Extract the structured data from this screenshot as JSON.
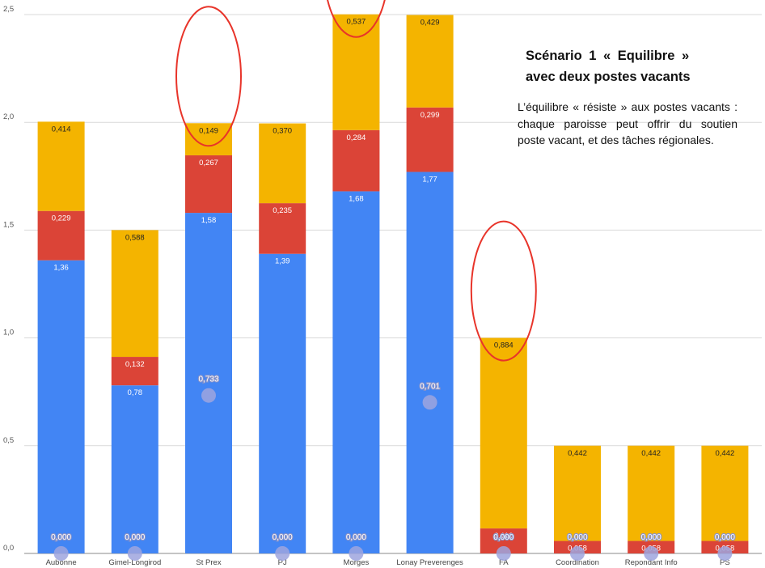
{
  "chart_data": {
    "type": "bar",
    "stacked": true,
    "categories": [
      "Aubonne",
      "Gimel-Longirod",
      "St Prex",
      "PJ",
      "Morges",
      "Lonay Preverenges",
      "FA",
      "Coordination",
      "Repondant Info",
      "PS"
    ],
    "series": [
      {
        "color": "#4285f4",
        "values": [
          1.36,
          0.78,
          1.58,
          1.39,
          1.68,
          1.77,
          0,
          0,
          0,
          0
        ],
        "labels": [
          "1,36",
          "0,78",
          "1,58",
          "1,39",
          "1,68",
          "1,77",
          "",
          "",
          "",
          ""
        ]
      },
      {
        "color": "#db4437",
        "values": [
          0.229,
          0.132,
          0.267,
          0.235,
          0.284,
          0.299,
          0.116,
          0.058,
          0.058,
          0.058
        ],
        "labels": [
          "0,229",
          "0,132",
          "0,267",
          "0,235",
          "0,284",
          "0,299",
          "0,116",
          "0,058",
          "0,058",
          "0,058"
        ]
      },
      {
        "color": "#f4b400",
        "values": [
          0.414,
          0.588,
          0.149,
          0.37,
          0.537,
          0.429,
          0.884,
          0.442,
          0.442,
          0.442
        ],
        "labels": [
          "0,414",
          "0,588",
          "0,149",
          "0,370",
          "0,537",
          "0,429",
          "0,884",
          "0,442",
          "0,442",
          "0,442"
        ]
      }
    ],
    "markers": {
      "color": "#9da4de",
      "values": [
        0,
        0,
        0.733,
        0,
        0,
        0.701,
        0,
        0,
        0,
        0
      ],
      "labels": [
        "0,000",
        "0,000",
        "0,733",
        "0,000",
        "0,000",
        "0,701",
        "0,000",
        "0,000",
        "0,000",
        "0,000"
      ]
    },
    "ylim": [
      0,
      2.5
    ],
    "yticks": [
      {
        "value": 0,
        "label": "0,0"
      },
      {
        "value": 0.5,
        "label": "0,5"
      },
      {
        "value": 1.0,
        "label": "1,0"
      },
      {
        "value": 1.5,
        "label": "1,5"
      },
      {
        "value": 2.0,
        "label": "2,0"
      },
      {
        "value": 2.5,
        "label": "2,5"
      }
    ],
    "grid": true,
    "highlight_color": "#e8342a",
    "highlighted_segments": [
      {
        "category": "St Prex",
        "series_index": 2
      },
      {
        "category": "Morges",
        "series_index": 2
      },
      {
        "category": "FA",
        "series_index": 2
      }
    ]
  },
  "annotation": {
    "title_line1": "Scénario 1 « Equilibre »",
    "title_line2": "avec deux postes vacants",
    "body": "L’équilibre « résiste » aux postes vacants : chaque paroisse peut offrir du soutien poste vacant, et des tâches régionales."
  }
}
